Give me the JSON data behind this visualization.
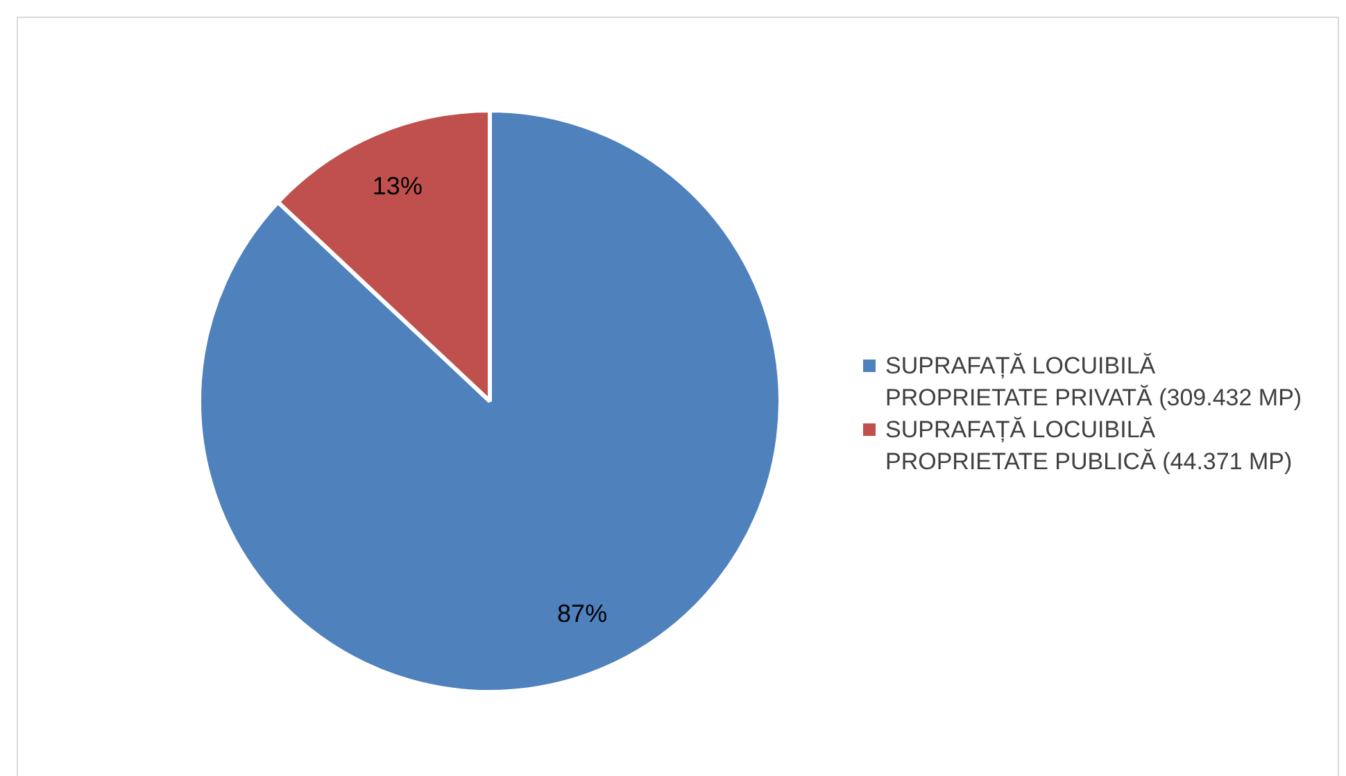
{
  "chart_data": {
    "type": "pie",
    "categories": [
      "SUPRAFAȚĂ LOCUIBILĂ PROPRIETATE PRIVATĂ (309.432 MP)",
      "SUPRAFAȚĂ LOCUIBILĂ PROPRIETATE PUBLICĂ (44.371 MP)"
    ],
    "values": [
      87,
      13
    ],
    "colors": [
      "#4f81bd",
      "#c0504d"
    ],
    "value_labels": [
      "87%",
      "13%"
    ],
    "legend": "right"
  }
}
